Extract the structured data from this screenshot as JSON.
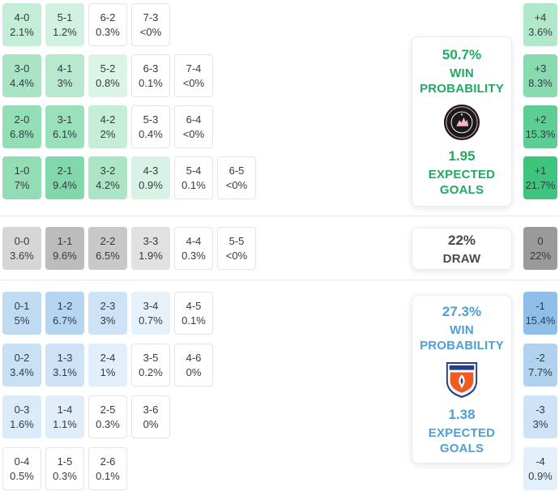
{
  "chart_data": {
    "type": "heatmap",
    "title": "Correct score probability matrix with win/draw probabilities and expected goals",
    "legend_position": "none",
    "sections": {
      "home": {
        "base_color": "#3fc47e",
        "text_color": "#21a961",
        "max_p": 21.7,
        "rows": [
          [
            {
              "score": "4-0",
              "prob": "2.1%",
              "p": 2.1
            },
            {
              "score": "5-1",
              "prob": "1.2%",
              "p": 1.2
            },
            {
              "score": "6-2",
              "prob": "0.3%",
              "p": 0.3
            },
            {
              "score": "7-3",
              "prob": "<0%",
              "p": 0
            }
          ],
          [
            {
              "score": "3-0",
              "prob": "4.4%",
              "p": 4.4
            },
            {
              "score": "4-1",
              "prob": "3%",
              "p": 3
            },
            {
              "score": "5-2",
              "prob": "0.8%",
              "p": 0.8
            },
            {
              "score": "6-3",
              "prob": "0.1%",
              "p": 0.1
            },
            {
              "score": "7-4",
              "prob": "<0%",
              "p": 0
            }
          ],
          [
            {
              "score": "2-0",
              "prob": "6.8%",
              "p": 6.8
            },
            {
              "score": "3-1",
              "prob": "6.1%",
              "p": 6.1
            },
            {
              "score": "4-2",
              "prob": "2%",
              "p": 2
            },
            {
              "score": "5-3",
              "prob": "0.4%",
              "p": 0.4
            },
            {
              "score": "6-4",
              "prob": "<0%",
              "p": 0
            }
          ],
          [
            {
              "score": "1-0",
              "prob": "7%",
              "p": 7
            },
            {
              "score": "2-1",
              "prob": "9.4%",
              "p": 9.4
            },
            {
              "score": "3-2",
              "prob": "4.2%",
              "p": 4.2
            },
            {
              "score": "4-3",
              "prob": "0.9%",
              "p": 0.9
            },
            {
              "score": "5-4",
              "prob": "0.1%",
              "p": 0.1
            },
            {
              "score": "6-5",
              "prob": "<0%",
              "p": 0
            }
          ]
        ],
        "diffs": [
          {
            "label": "+4",
            "prob": "3.6%",
            "p": 3.6
          },
          {
            "label": "+3",
            "prob": "8.3%",
            "p": 8.3
          },
          {
            "label": "+2",
            "prob": "15.3%",
            "p": 15.3
          },
          {
            "label": "+1",
            "prob": "21.7%",
            "p": 21.7
          }
        ],
        "panel": {
          "win_prob": "50.7%",
          "win_word": "WIN",
          "probability_word": "PROBABILITY",
          "expected_goals": "1.95",
          "expected_word": "EXPECTED",
          "goals_word": "GOALS",
          "logo": "inter-miami-crest"
        }
      },
      "draw": {
        "base_color": "#9a9a9a",
        "text_color": "#4a4a4a",
        "max_p": 22,
        "rows": [
          [
            {
              "score": "0-0",
              "prob": "3.6%",
              "p": 3.6
            },
            {
              "score": "1-1",
              "prob": "9.6%",
              "p": 9.6
            },
            {
              "score": "2-2",
              "prob": "6.5%",
              "p": 6.5
            },
            {
              "score": "3-3",
              "prob": "1.9%",
              "p": 1.9
            },
            {
              "score": "4-4",
              "prob": "0.3%",
              "p": 0.3
            },
            {
              "score": "5-5",
              "prob": "<0%",
              "p": 0
            }
          ]
        ],
        "diffs": [
          {
            "label": "0",
            "prob": "22%",
            "p": 22
          }
        ],
        "panel": {
          "prob": "22%",
          "label": "DRAW"
        }
      },
      "away": {
        "base_color": "#8fbfe8",
        "text_color": "#4f9fd7",
        "max_p": 15.4,
        "rows": [
          [
            {
              "score": "0-1",
              "prob": "5%",
              "p": 5
            },
            {
              "score": "1-2",
              "prob": "6.7%",
              "p": 6.7
            },
            {
              "score": "2-3",
              "prob": "3%",
              "p": 3
            },
            {
              "score": "3-4",
              "prob": "0.7%",
              "p": 0.7
            },
            {
              "score": "4-5",
              "prob": "0.1%",
              "p": 0.1
            }
          ],
          [
            {
              "score": "0-2",
              "prob": "3.4%",
              "p": 3.4
            },
            {
              "score": "1-3",
              "prob": "3.1%",
              "p": 3.1
            },
            {
              "score": "2-4",
              "prob": "1%",
              "p": 1
            },
            {
              "score": "3-5",
              "prob": "0.2%",
              "p": 0.2
            },
            {
              "score": "4-6",
              "prob": "0%",
              "p": 0
            }
          ],
          [
            {
              "score": "0-3",
              "prob": "1.6%",
              "p": 1.6
            },
            {
              "score": "1-4",
              "prob": "1.1%",
              "p": 1.1
            },
            {
              "score": "2-5",
              "prob": "0.3%",
              "p": 0.3
            },
            {
              "score": "3-6",
              "prob": "0%",
              "p": 0
            }
          ],
          [
            {
              "score": "0-4",
              "prob": "0.5%",
              "p": 0.5
            },
            {
              "score": "1-5",
              "prob": "0.3%",
              "p": 0.3
            },
            {
              "score": "2-6",
              "prob": "0.1%",
              "p": 0.1
            }
          ]
        ],
        "diffs": [
          {
            "label": "-1",
            "prob": "15.4%",
            "p": 15.4
          },
          {
            "label": "-2",
            "prob": "7.7%",
            "p": 7.7
          },
          {
            "label": "-3",
            "prob": "3%",
            "p": 3
          },
          {
            "label": "-4",
            "prob": "0.9%",
            "p": 0.9
          }
        ],
        "panel": {
          "win_prob": "27.3%",
          "win_word": "WIN",
          "probability_word": "PROBABILITY",
          "expected_goals": "1.38",
          "expected_word": "EXPECTED",
          "goals_word": "GOALS",
          "logo": "fc-cincinnati-crest"
        }
      }
    }
  }
}
